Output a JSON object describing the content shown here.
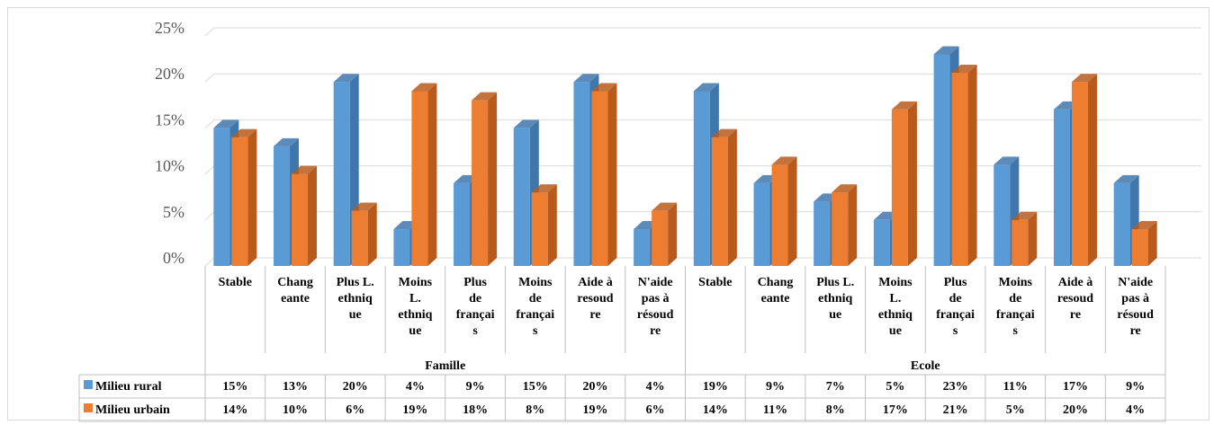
{
  "chart_data": {
    "type": "bar",
    "style": "3d-clustered-column-with-data-table",
    "ylim": [
      0,
      25
    ],
    "yticks": [
      "0%",
      "5%",
      "10%",
      "15%",
      "20%",
      "25%"
    ],
    "grid": true,
    "legend": "data-table",
    "groups": [
      {
        "label": "Famille",
        "categories": [
          [
            "Stable"
          ],
          [
            "Chang",
            "eante"
          ],
          [
            "Plus L.",
            "ethniq",
            "ue"
          ],
          [
            "Moins",
            "L.",
            "ethniq",
            "ue"
          ],
          [
            "Plus",
            "de",
            "françai",
            "s"
          ],
          [
            "Moins",
            "de",
            "françai",
            "s"
          ],
          [
            "Aide à",
            "resoud",
            "re"
          ],
          [
            "N'aide",
            "pas à",
            "résoud",
            "re"
          ]
        ]
      },
      {
        "label": "Ecole",
        "categories": [
          [
            "Stable"
          ],
          [
            "Chang",
            "eante"
          ],
          [
            "Plus L.",
            "ethniq",
            "ue"
          ],
          [
            "Moins",
            "L.",
            "ethniq",
            "ue"
          ],
          [
            "Plus",
            "de",
            "françai",
            "s"
          ],
          [
            "Moins",
            "de",
            "françai",
            "s"
          ],
          [
            "Aide à",
            "resoud",
            "re"
          ],
          [
            "N'aide",
            "pas à",
            "résoud",
            "re"
          ]
        ]
      }
    ],
    "series": [
      {
        "name": "Milieu rural",
        "color": "#5b9bd5",
        "side_color": "#3f77ad",
        "values": [
          15,
          13,
          20,
          4,
          9,
          15,
          20,
          4,
          19,
          9,
          7,
          5,
          23,
          11,
          17,
          9
        ],
        "labels": [
          "15%",
          "13%",
          "20%",
          "4%",
          "9%",
          "15%",
          "20%",
          "4%",
          "19%",
          "9%",
          "7%",
          "5%",
          "23%",
          "11%",
          "17%",
          "9%"
        ]
      },
      {
        "name": "Milieu urbain",
        "color": "#ed7d31",
        "side_color": "#b85a1b",
        "values": [
          14,
          10,
          6,
          19,
          18,
          8,
          19,
          6,
          14,
          11,
          8,
          17,
          21,
          5,
          20,
          4
        ],
        "labels": [
          "14%",
          "10%",
          "6%",
          "19%",
          "18%",
          "8%",
          "19%",
          "6%",
          "14%",
          "11%",
          "8%",
          "17%",
          "21%",
          "5%",
          "20%",
          "4%"
        ]
      }
    ]
  }
}
